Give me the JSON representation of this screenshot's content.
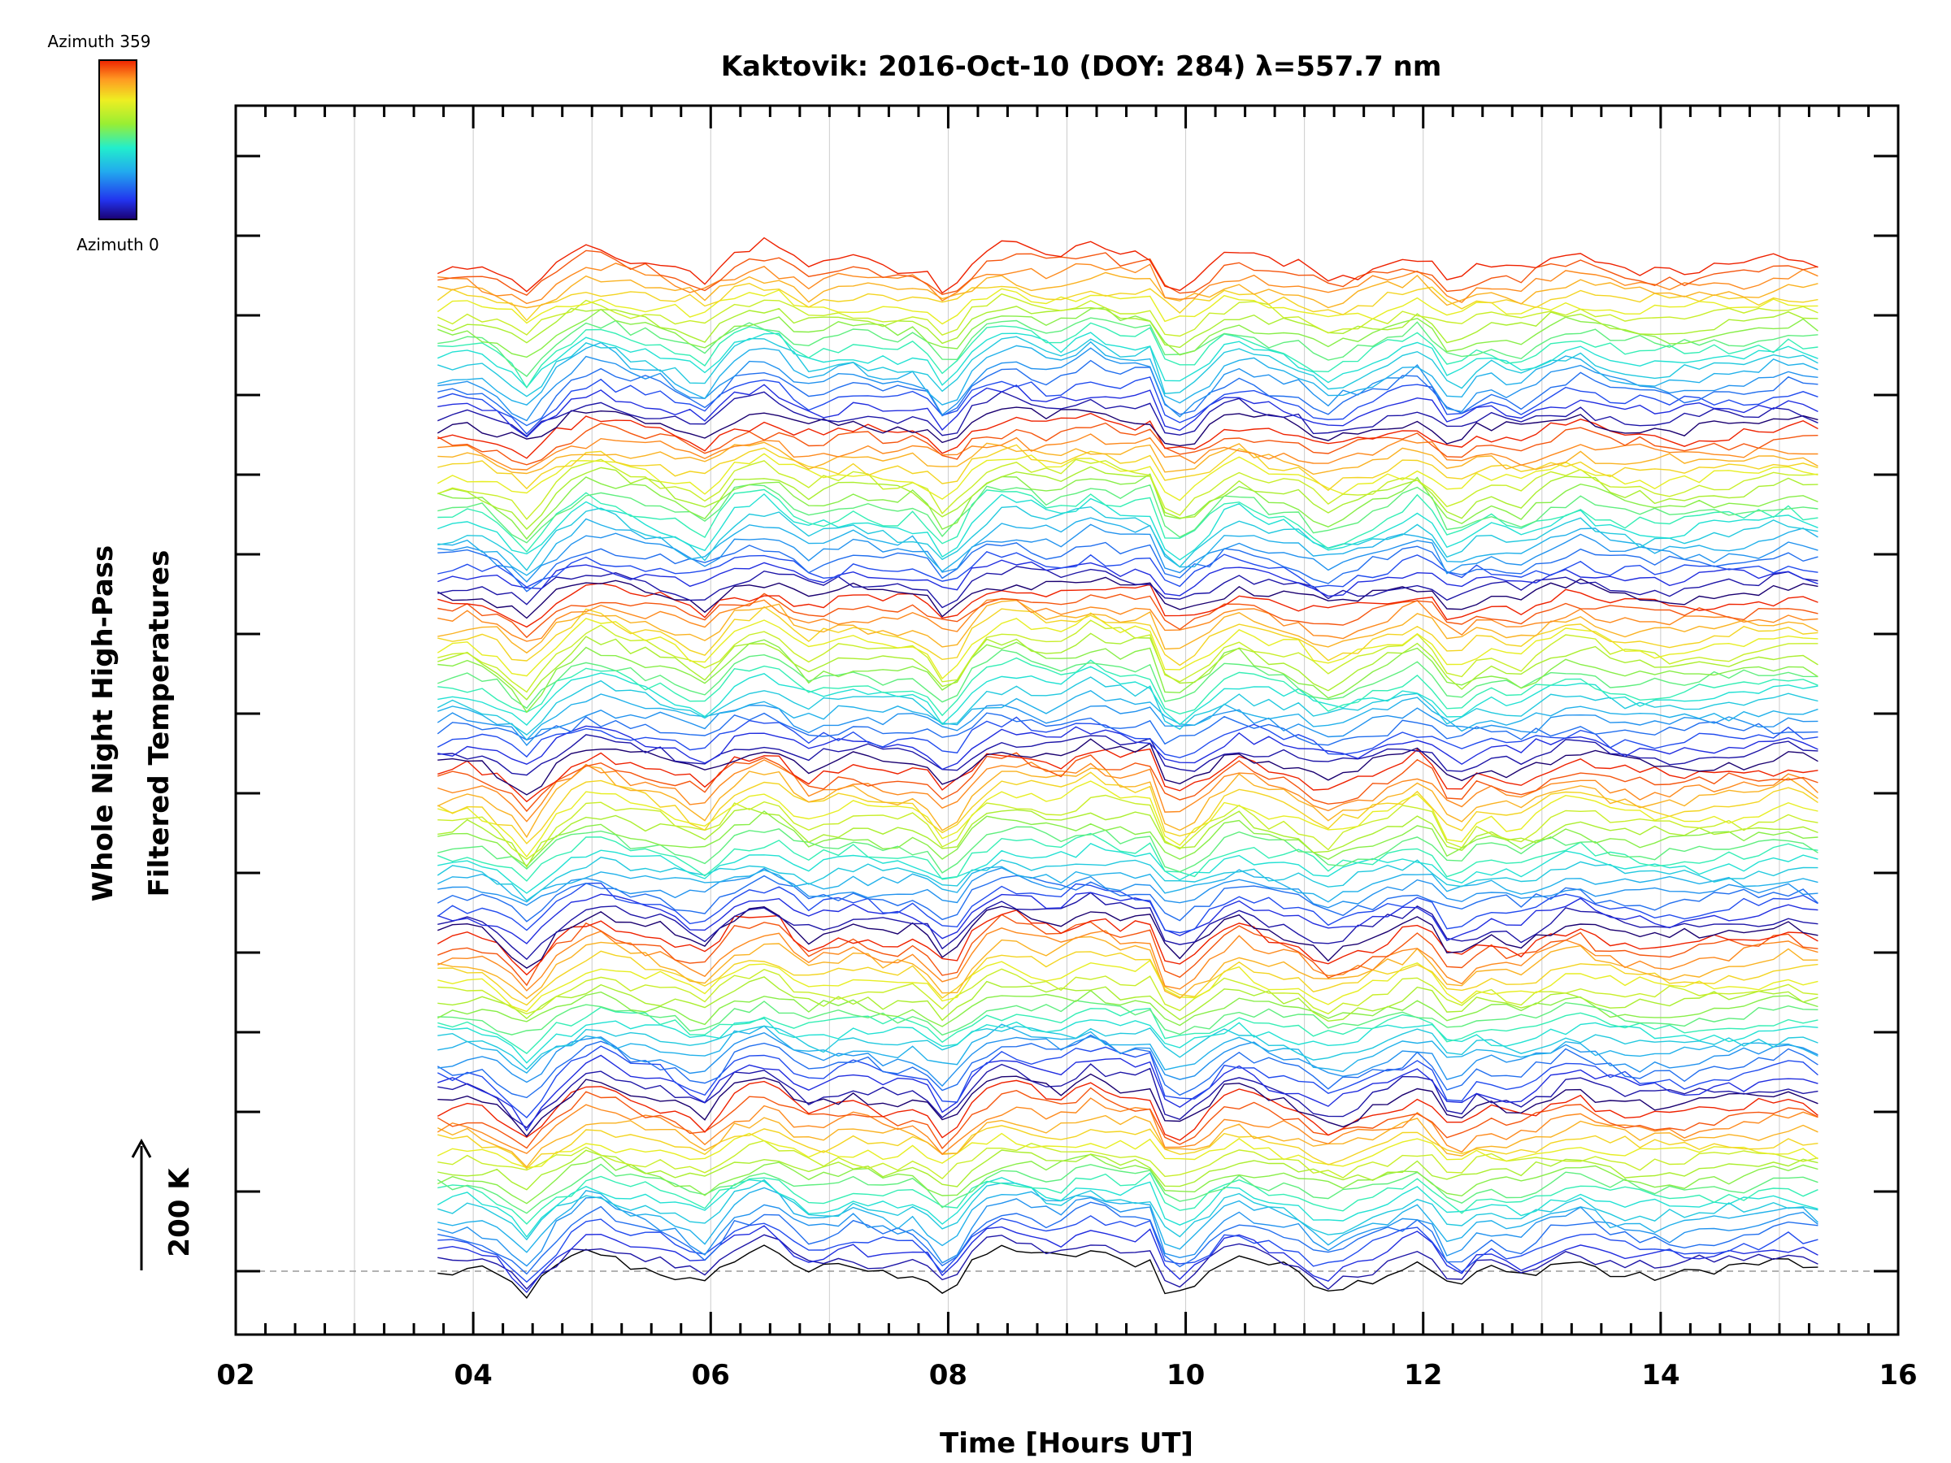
{
  "chart_data": {
    "type": "line",
    "title": "Kaktovik: 2016-Oct-10 (DOY: 284) λ=557.7 nm",
    "xlabel": "Time [Hours UT]",
    "ylabel_line1": "Whole Night High-Pass",
    "ylabel_line2": "Filtered Temperatures",
    "scale_label": "200 K",
    "xlim": [
      2,
      16
    ],
    "x_tick_labels": [
      "02",
      "04",
      "06",
      "08",
      "10",
      "12",
      "14",
      "16"
    ],
    "x_tick_values": [
      2,
      4,
      6,
      8,
      10,
      12,
      14,
      16
    ],
    "x_start": 3.7,
    "x_end": 15.4,
    "sample_step_hours": 0.125,
    "colorbar": {
      "top_label": "Azimuth 359",
      "bottom_label": "Azimuth 0",
      "colormap": "rainbow"
    },
    "series_count": 120,
    "azimuth_groups": 6,
    "series_per_group": 20,
    "series_offset_K": 14,
    "shared_profile": {
      "x": [
        3.7,
        4.0,
        4.25,
        4.45,
        4.7,
        5.0,
        5.3,
        5.6,
        5.95,
        6.2,
        6.5,
        6.8,
        7.2,
        7.5,
        7.75,
        8.0,
        8.25,
        8.5,
        8.9,
        9.2,
        9.5,
        9.75,
        9.85,
        10.1,
        10.4,
        10.7,
        11.0,
        11.15,
        11.5,
        11.8,
        12.0,
        12.25,
        12.5,
        12.8,
        13.1,
        13.3,
        13.6,
        13.9,
        14.2,
        14.5,
        14.8,
        15.1,
        15.4
      ],
      "dT_K": [
        0,
        5,
        -15,
        -45,
        0,
        35,
        15,
        5,
        -20,
        20,
        35,
        -5,
        10,
        0,
        5,
        -40,
        20,
        35,
        15,
        35,
        20,
        25,
        -40,
        -20,
        25,
        5,
        -5,
        -30,
        -10,
        10,
        25,
        -35,
        0,
        -15,
        10,
        20,
        0,
        -5,
        -5,
        0,
        5,
        15,
        0
      ]
    }
  }
}
